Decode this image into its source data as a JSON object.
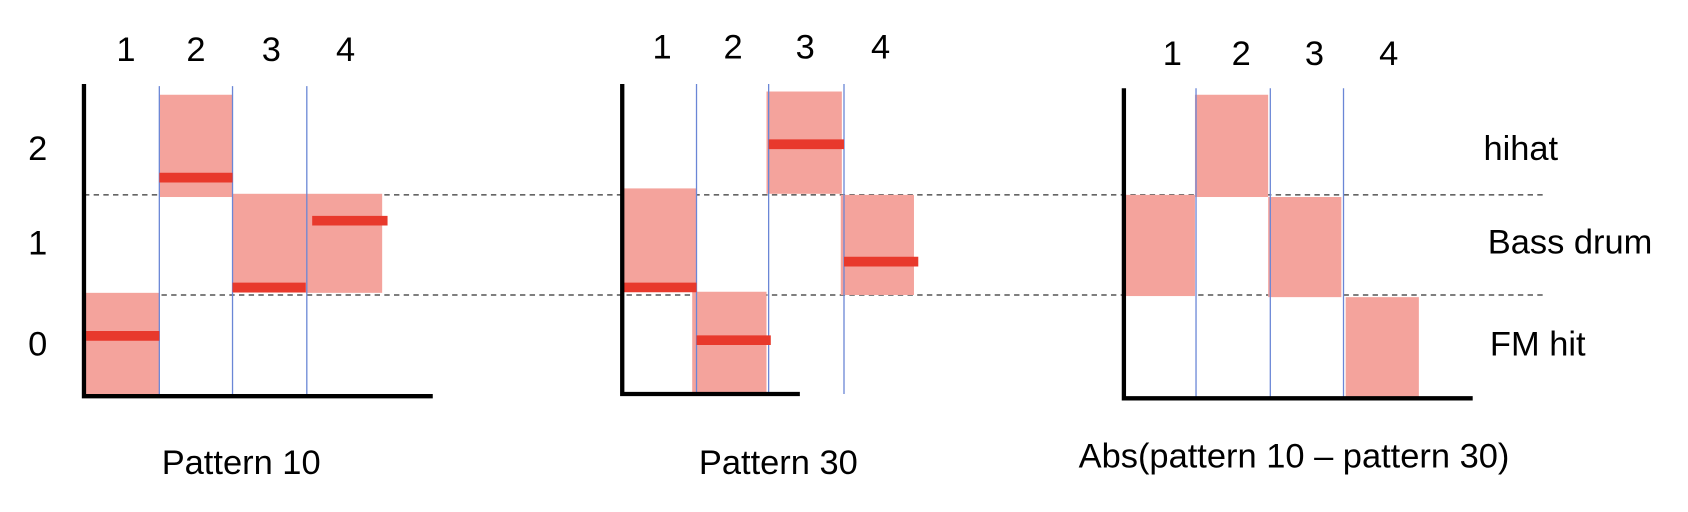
{
  "panels": [
    {
      "columns": [
        "1",
        "2",
        "3",
        "4"
      ],
      "title": "Pattern 10"
    },
    {
      "columns": [
        "1",
        "2",
        "3",
        "4"
      ],
      "title": "Pattern 30"
    },
    {
      "columns": [
        "1",
        "2",
        "3",
        "4"
      ],
      "title": "Abs(pattern 10 – pattern 30)"
    }
  ],
  "rows": [
    "2",
    "1",
    "0"
  ],
  "row_names": [
    "hihat",
    "Bass drum",
    "FM hit"
  ]
}
